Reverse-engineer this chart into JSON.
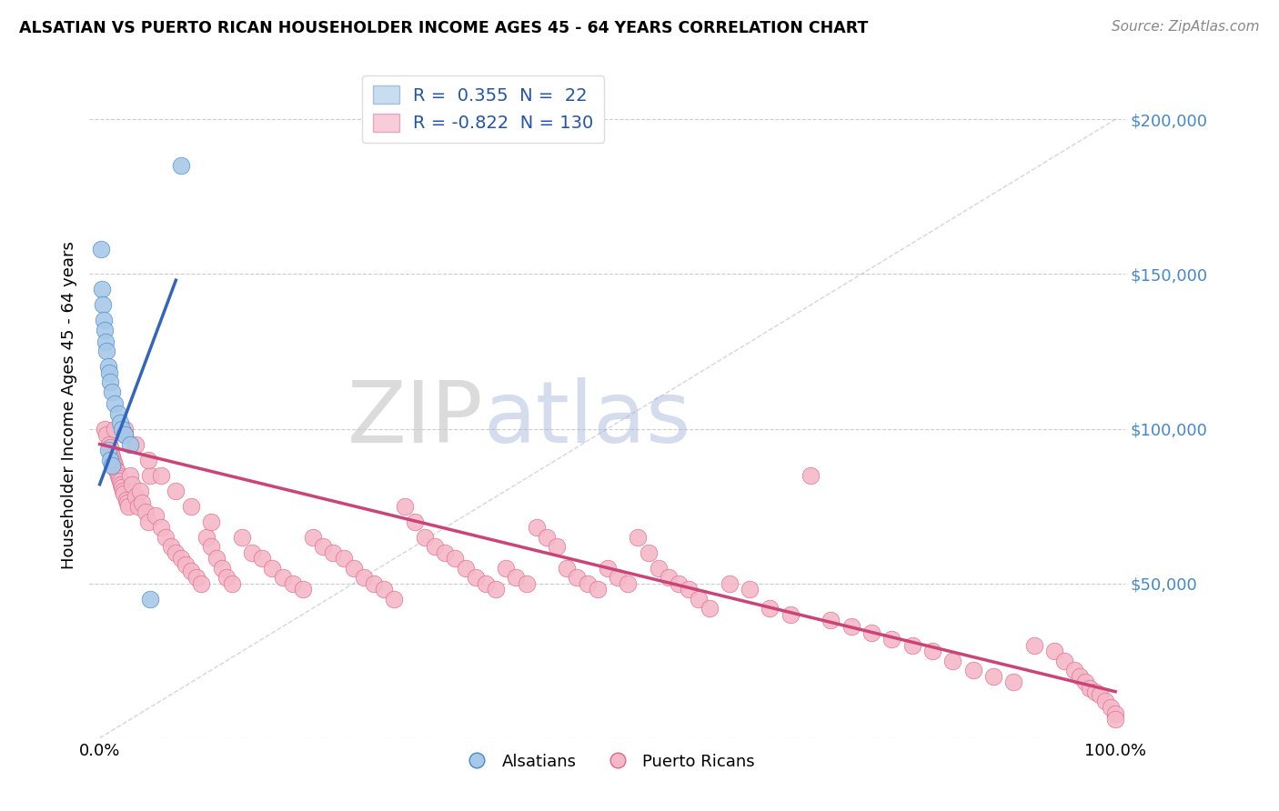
{
  "title": "ALSATIAN VS PUERTO RICAN HOUSEHOLDER INCOME AGES 45 - 64 YEARS CORRELATION CHART",
  "source": "Source: ZipAtlas.com",
  "ylabel": "Householder Income Ages 45 - 64 years",
  "legend_labels": [
    "Alsatians",
    "Puerto Ricans"
  ],
  "alsatian_R": 0.355,
  "alsatian_N": 22,
  "puertorican_R": -0.822,
  "puertorican_N": 130,
  "blue_dot_color": "#a8c8e8",
  "blue_dot_edge": "#4488cc",
  "pink_dot_color": "#f4b8c8",
  "pink_dot_edge": "#e06888",
  "blue_line_color": "#3366bb",
  "pink_line_color": "#cc4477",
  "ytick_color": "#4488cc",
  "ylim": [
    0,
    215000
  ],
  "xlim": [
    -0.01,
    1.01
  ],
  "alsatian_x": [
    0.001,
    0.002,
    0.003,
    0.004,
    0.005,
    0.006,
    0.007,
    0.008,
    0.009,
    0.01,
    0.012,
    0.015,
    0.018,
    0.02,
    0.022,
    0.025,
    0.03,
    0.008,
    0.01,
    0.012,
    0.05,
    0.08
  ],
  "alsatian_y": [
    158000,
    145000,
    140000,
    135000,
    132000,
    128000,
    125000,
    120000,
    118000,
    115000,
    112000,
    108000,
    105000,
    102000,
    100000,
    98000,
    95000,
    93000,
    90000,
    88000,
    45000,
    185000
  ],
  "blue_trend_x0": 0.0,
  "blue_trend_y0": 82000,
  "blue_trend_x1": 0.075,
  "blue_trend_y1": 148000,
  "pink_trend_x0": 0.0,
  "pink_trend_y0": 95000,
  "pink_trend_x1": 1.0,
  "pink_trend_y1": 15000,
  "pr_x": [
    0.005,
    0.007,
    0.009,
    0.01,
    0.011,
    0.012,
    0.013,
    0.014,
    0.015,
    0.016,
    0.017,
    0.018,
    0.019,
    0.02,
    0.021,
    0.022,
    0.023,
    0.024,
    0.025,
    0.026,
    0.027,
    0.028,
    0.03,
    0.032,
    0.035,
    0.038,
    0.04,
    0.042,
    0.045,
    0.048,
    0.05,
    0.055,
    0.06,
    0.065,
    0.07,
    0.075,
    0.08,
    0.085,
    0.09,
    0.095,
    0.1,
    0.105,
    0.11,
    0.115,
    0.12,
    0.125,
    0.13,
    0.14,
    0.15,
    0.16,
    0.17,
    0.18,
    0.19,
    0.2,
    0.21,
    0.22,
    0.23,
    0.24,
    0.25,
    0.26,
    0.27,
    0.28,
    0.29,
    0.3,
    0.31,
    0.32,
    0.33,
    0.34,
    0.35,
    0.36,
    0.37,
    0.38,
    0.39,
    0.4,
    0.41,
    0.42,
    0.43,
    0.44,
    0.45,
    0.46,
    0.47,
    0.48,
    0.49,
    0.5,
    0.51,
    0.52,
    0.53,
    0.54,
    0.55,
    0.56,
    0.57,
    0.58,
    0.59,
    0.6,
    0.62,
    0.64,
    0.66,
    0.68,
    0.7,
    0.72,
    0.74,
    0.76,
    0.78,
    0.8,
    0.82,
    0.84,
    0.86,
    0.88,
    0.9,
    0.92,
    0.94,
    0.95,
    0.96,
    0.965,
    0.97,
    0.975,
    0.98,
    0.985,
    0.99,
    0.995,
    1.0,
    1.0,
    0.015,
    0.025,
    0.035,
    0.048,
    0.06,
    0.075,
    0.09,
    0.11
  ],
  "pr_y": [
    100000,
    98000,
    95000,
    94000,
    92000,
    91000,
    90000,
    89000,
    88000,
    87000,
    86000,
    85000,
    84000,
    83000,
    82000,
    81000,
    80000,
    79000,
    100000,
    77000,
    76000,
    75000,
    85000,
    82000,
    78000,
    75000,
    80000,
    76000,
    73000,
    70000,
    85000,
    72000,
    68000,
    65000,
    62000,
    60000,
    58000,
    56000,
    54000,
    52000,
    50000,
    65000,
    62000,
    58000,
    55000,
    52000,
    50000,
    65000,
    60000,
    58000,
    55000,
    52000,
    50000,
    48000,
    65000,
    62000,
    60000,
    58000,
    55000,
    52000,
    50000,
    48000,
    45000,
    75000,
    70000,
    65000,
    62000,
    60000,
    58000,
    55000,
    52000,
    50000,
    48000,
    55000,
    52000,
    50000,
    68000,
    65000,
    62000,
    55000,
    52000,
    50000,
    48000,
    55000,
    52000,
    50000,
    65000,
    60000,
    55000,
    52000,
    50000,
    48000,
    45000,
    42000,
    50000,
    48000,
    42000,
    40000,
    85000,
    38000,
    36000,
    34000,
    32000,
    30000,
    28000,
    25000,
    22000,
    20000,
    18000,
    30000,
    28000,
    25000,
    22000,
    20000,
    18000,
    16000,
    15000,
    14000,
    12000,
    10000,
    8000,
    6000,
    100000,
    98000,
    95000,
    90000,
    85000,
    80000,
    75000,
    70000
  ]
}
